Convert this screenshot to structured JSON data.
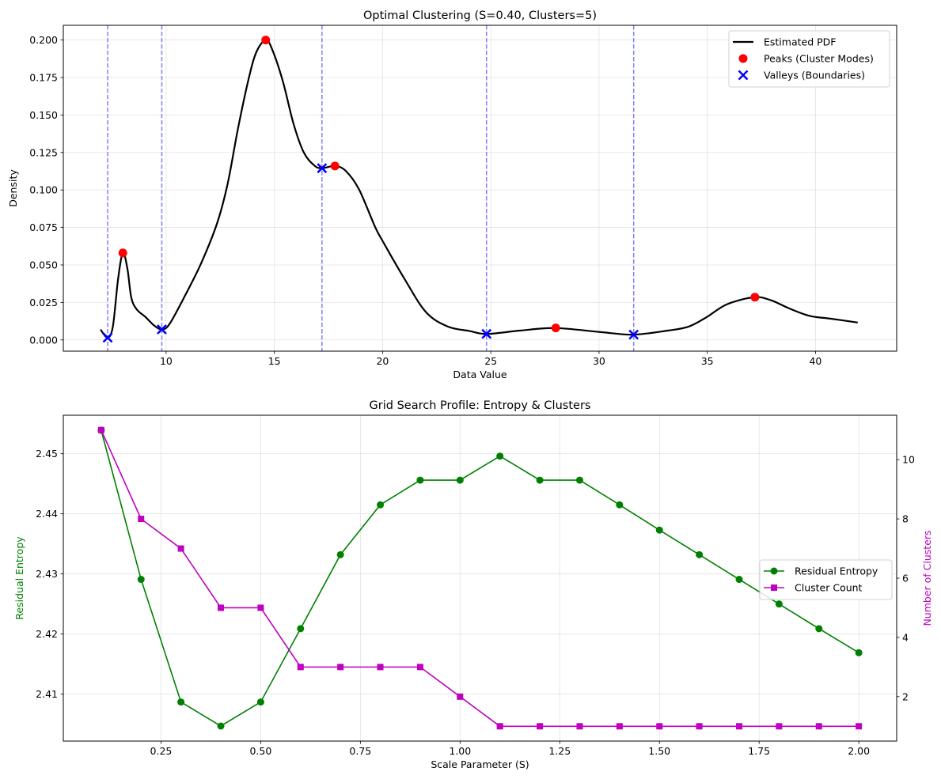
{
  "chart_data": [
    {
      "type": "line",
      "title": "Optimal Clustering (S=0.40, Clusters=5)",
      "xlabel": "Data Value",
      "ylabel": "Density",
      "xlim": [
        5.25,
        43.75
      ],
      "ylim": [
        -0.0075,
        0.2098
      ],
      "grid": true,
      "legend_position": "top-right",
      "xticks": [
        10,
        15,
        20,
        25,
        30,
        35,
        40
      ],
      "xtick_labels": [
        "10",
        "15",
        "20",
        "25",
        "30",
        "35",
        "40"
      ],
      "yticks": [
        0,
        0.025,
        0.05,
        0.075,
        0.1,
        0.125,
        0.15,
        0.175,
        0.2
      ],
      "ytick_labels": [
        "0.000",
        "0.025",
        "0.050",
        "0.075",
        "0.100",
        "0.125",
        "0.150",
        "0.175",
        "0.200"
      ],
      "series": [
        {
          "name": "Estimated PDF",
          "kind": "line",
          "color": "#000000",
          "x": [
            6.97,
            7.3,
            7.54,
            7.78,
            8.0,
            8.21,
            8.39,
            8.64,
            9.06,
            9.43,
            9.8,
            10.16,
            10.89,
            11.62,
            12.35,
            12.84,
            13.32,
            13.81,
            14.17,
            14.6,
            14.9,
            15.39,
            15.88,
            16.36,
            16.85,
            17.2,
            17.8,
            18.3,
            18.91,
            19.64,
            20.0,
            21.0,
            22.0,
            23.0,
            24.0,
            24.8,
            26.34,
            27.98,
            30.03,
            31.56,
            33.17,
            34.13,
            34.95,
            35.9,
            37.17,
            37.95,
            38.77,
            39.73,
            40.68,
            41.95
          ],
          "y": [
            0.0069,
            0.0015,
            0.009,
            0.0406,
            0.058,
            0.0476,
            0.0283,
            0.0204,
            0.0151,
            0.0098,
            0.007,
            0.0107,
            0.03,
            0.0512,
            0.0776,
            0.104,
            0.141,
            0.174,
            0.192,
            0.2,
            0.1937,
            0.1726,
            0.1444,
            0.125,
            0.1163,
            0.1145,
            0.116,
            0.1127,
            0.1004,
            0.0758,
            0.066,
            0.041,
            0.0186,
            0.009,
            0.006,
            0.004,
            0.0062,
            0.0079,
            0.0053,
            0.0035,
            0.0062,
            0.0088,
            0.015,
            0.0237,
            0.0285,
            0.0264,
            0.0211,
            0.016,
            0.0142,
            0.0116
          ]
        },
        {
          "name": "Peaks (Cluster Modes)",
          "kind": "scatter",
          "marker": "circle",
          "color": "#ff0000",
          "x": [
            8.0,
            14.6,
            17.8,
            28.0,
            37.2
          ],
          "y": [
            0.058,
            0.2,
            0.116,
            0.008,
            0.0285
          ]
        },
        {
          "name": "Valleys (Boundaries)",
          "kind": "scatter",
          "marker": "x",
          "color": "#0000ff",
          "x": [
            7.3,
            9.8,
            17.2,
            24.8,
            31.6
          ],
          "y": [
            0.0015,
            0.007,
            0.1145,
            0.004,
            0.0035
          ]
        }
      ],
      "boundary_lines": {
        "x": [
          7.3,
          9.8,
          17.2,
          24.8,
          31.6
        ],
        "color": "#8080ff",
        "style": "dashed"
      }
    },
    {
      "type": "line",
      "title": "Grid Search Profile: Entropy & Clusters",
      "xlabel": "Scale Parameter (S)",
      "ylabel": "Residual Entropy",
      "ylabel_right": "Number of Clusters",
      "xlim": [
        0.005,
        2.095
      ],
      "ylim": [
        2.4022,
        2.4564
      ],
      "ylim_right": [
        0.5,
        11.5
      ],
      "grid": true,
      "legend_position": "center-right",
      "xticks": [
        0.25,
        0.5,
        0.75,
        1.0,
        1.25,
        1.5,
        1.75,
        2.0
      ],
      "xtick_labels": [
        "0.25",
        "0.50",
        "0.75",
        "1.00",
        "1.25",
        "1.50",
        "1.75",
        "2.00"
      ],
      "yticks": [
        2.41,
        2.42,
        2.43,
        2.44,
        2.45
      ],
      "ytick_labels": [
        "2.41",
        "2.42",
        "2.43",
        "2.44",
        "2.45"
      ],
      "yticks_right": [
        2,
        4,
        6,
        8,
        10
      ],
      "ytick_labels_right": [
        "2",
        "4",
        "6",
        "8",
        "10"
      ],
      "x": [
        0.1,
        0.2,
        0.3,
        0.4,
        0.5,
        0.6,
        0.7,
        0.8,
        0.9,
        1.0,
        1.1,
        1.2,
        1.3,
        1.4,
        1.5,
        1.6,
        1.7,
        1.8,
        1.9,
        2.0
      ],
      "series": [
        {
          "name": "Residual Entropy",
          "axis": "left",
          "marker": "circle",
          "color": "#008000",
          "values": [
            2.4539,
            2.4291,
            2.4087,
            2.4047,
            2.4087,
            2.4209,
            2.4332,
            2.4415,
            2.4456,
            2.4456,
            2.4496,
            2.4456,
            2.4456,
            2.4415,
            2.4373,
            2.4332,
            2.4291,
            2.425,
            2.4209,
            2.4169
          ]
        },
        {
          "name": "Cluster Count",
          "axis": "right",
          "marker": "square",
          "color": "#bf00bf",
          "values": [
            11,
            8,
            7,
            5,
            5,
            3,
            3,
            3,
            3,
            2,
            1,
            1,
            1,
            1,
            1,
            1,
            1,
            1,
            1,
            1
          ]
        }
      ]
    }
  ]
}
